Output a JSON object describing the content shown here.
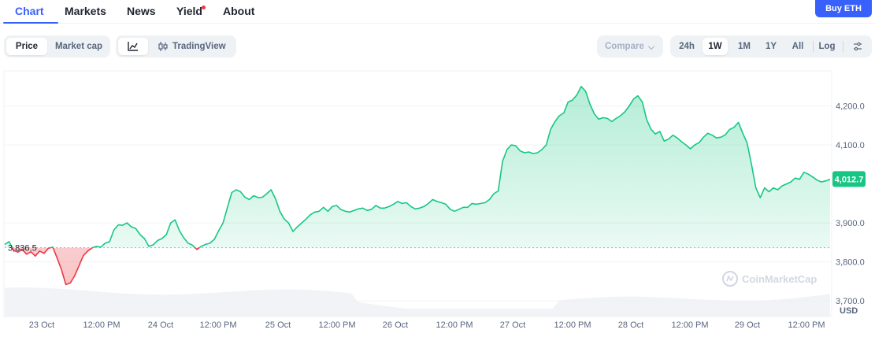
{
  "nav": {
    "tabs": [
      {
        "label": "Chart"
      },
      {
        "label": "Markets"
      },
      {
        "label": "News"
      },
      {
        "label": "Yield"
      },
      {
        "label": "About"
      }
    ],
    "buy_label": "Buy ETH"
  },
  "controls": {
    "price_label": "Price",
    "marketcap_label": "Market cap",
    "tradingview_label": "TradingView",
    "compare_label": "Compare",
    "ranges": [
      "24h",
      "1W",
      "1M",
      "1Y",
      "All"
    ],
    "active_range": "1W",
    "log_label": "Log"
  },
  "watermark": "CoinMarketCap",
  "colors": {
    "up": "#16c784",
    "down": "#ea3943",
    "accent": "#3861fb"
  },
  "chart_data": {
    "type": "area",
    "ylim": [
      3660,
      4290
    ],
    "yticks": [
      {
        "value": 3700,
        "label": "3,700.0"
      },
      {
        "value": 3800,
        "label": "3,800.0"
      },
      {
        "value": 3900,
        "label": "3,900.0"
      },
      {
        "value": 4100,
        "label": "4,100.0"
      },
      {
        "value": 4200,
        "label": "4,200.0"
      }
    ],
    "y_unit_label": "USD",
    "x_ticks": [
      "23 Oct",
      "12:00 PM",
      "24 Oct",
      "12:00 PM",
      "25 Oct",
      "12:00 PM",
      "26 Oct",
      "12:00 PM",
      "27 Oct",
      "12:00 PM",
      "28 Oct",
      "12:00 PM",
      "29 Oct",
      "12:00 PM"
    ],
    "baseline": {
      "value": 3836.5,
      "label": "3,836.5"
    },
    "current": {
      "value": 4012.7,
      "label": "4,012.7"
    },
    "series": [
      {
        "values": [
          3845,
          3852,
          3830,
          3825,
          3832,
          3820,
          3826,
          3815,
          3828,
          3822,
          3835,
          3838,
          3810,
          3780,
          3742,
          3746,
          3764,
          3790,
          3816,
          3828,
          3836,
          3840,
          3838,
          3848,
          3852,
          3882,
          3895,
          3894,
          3900,
          3890,
          3886,
          3870,
          3860,
          3840,
          3844,
          3855,
          3860,
          3870,
          3900,
          3908,
          3880,
          3862,
          3848,
          3843,
          3832,
          3840,
          3845,
          3848,
          3858,
          3880,
          3900,
          3940,
          3978,
          3985,
          3980,
          3966,
          3960,
          3970,
          3965,
          3966,
          3975,
          3985,
          3962,
          3930,
          3910,
          3900,
          3878,
          3890,
          3900,
          3910,
          3921,
          3928,
          3930,
          3940,
          3930,
          3942,
          3945,
          3934,
          3930,
          3928,
          3932,
          3936,
          3938,
          3932,
          3935,
          3945,
          3938,
          3938,
          3942,
          3948,
          3955,
          3950,
          3952,
          3942,
          3936,
          3938,
          3942,
          3950,
          3960,
          3955,
          3952,
          3948,
          3935,
          3930,
          3935,
          3940,
          3940,
          3950,
          3948,
          3950,
          3952,
          3960,
          3975,
          3982,
          4058,
          4088,
          4100,
          4098,
          4085,
          4080,
          4082,
          4078,
          4080,
          4088,
          4100,
          4140,
          4160,
          4175,
          4182,
          4210,
          4215,
          4228,
          4250,
          4238,
          4205,
          4180,
          4166,
          4170,
          4168,
          4160,
          4168,
          4175,
          4185,
          4200,
          4218,
          4226,
          4210,
          4165,
          4140,
          4128,
          4135,
          4110,
          4115,
          4125,
          4118,
          4108,
          4100,
          4090,
          4100,
          4106,
          4120,
          4130,
          4125,
          4118,
          4120,
          4126,
          4140,
          4145,
          4158,
          4130,
          4105,
          4050,
          3990,
          3965,
          3990,
          3980,
          3990,
          3985,
          3995,
          4000,
          4005,
          4015,
          4012,
          4030,
          4025,
          4018,
          4010,
          4005,
          4008,
          4012
        ]
      }
    ]
  }
}
